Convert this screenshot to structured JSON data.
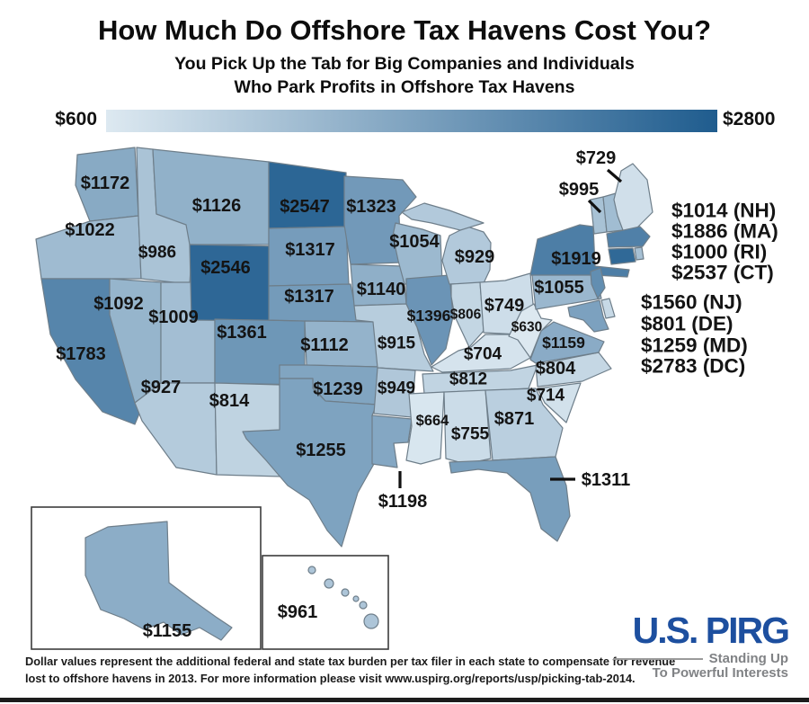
{
  "header": {
    "title": "How Much Do Offshore Tax Havens Cost You?",
    "subtitle_line1": "You Pick Up the Tab for Big Companies and Individuals",
    "subtitle_line2": "Who Park Profits in Offshore Tax Havens"
  },
  "legend": {
    "min_label": "$600",
    "max_label": "$2800",
    "min_value": 600,
    "max_value": 2800,
    "light_color": "#dde9f1",
    "dark_color": "#1f5c8e"
  },
  "chart_data": {
    "type": "choropleth",
    "title": "How Much Do Offshore Tax Havens Cost You?",
    "unit": "additional federal and state tax burden per tax filer, USD, 2013",
    "color_scale": {
      "min": 600,
      "max": 2800,
      "min_color": "#dde9f1",
      "max_color": "#1f5c8e"
    },
    "states": [
      {
        "code": "WA",
        "value": 1172
      },
      {
        "code": "OR",
        "value": 1022
      },
      {
        "code": "CA",
        "value": 1783
      },
      {
        "code": "NV",
        "value": 1092
      },
      {
        "code": "ID",
        "value": 986
      },
      {
        "code": "UT",
        "value": 1009
      },
      {
        "code": "AZ",
        "value": 927
      },
      {
        "code": "MT",
        "value": 1126
      },
      {
        "code": "WY",
        "value": 2546
      },
      {
        "code": "CO",
        "value": 1361
      },
      {
        "code": "NM",
        "value": 814
      },
      {
        "code": "ND",
        "value": 2547
      },
      {
        "code": "SD",
        "value": 1317
      },
      {
        "code": "NE",
        "value": 1317
      },
      {
        "code": "KS",
        "value": 1112
      },
      {
        "code": "OK",
        "value": 1239
      },
      {
        "code": "TX",
        "value": 1255
      },
      {
        "code": "MN",
        "value": 1323
      },
      {
        "code": "IA",
        "value": 1140
      },
      {
        "code": "MO",
        "value": 915
      },
      {
        "code": "AR",
        "value": 949
      },
      {
        "code": "LA",
        "value": 1198
      },
      {
        "code": "WI",
        "value": 1054
      },
      {
        "code": "IL",
        "value": 1396
      },
      {
        "code": "MI",
        "value": 929
      },
      {
        "code": "IN",
        "value": 806
      },
      {
        "code": "OH",
        "value": 749
      },
      {
        "code": "KY",
        "value": 704
      },
      {
        "code": "TN",
        "value": 812
      },
      {
        "code": "MS",
        "value": 664
      },
      {
        "code": "AL",
        "value": 755
      },
      {
        "code": "GA",
        "value": 871
      },
      {
        "code": "FL",
        "value": 1311
      },
      {
        "code": "SC",
        "value": 714
      },
      {
        "code": "NC",
        "value": 804
      },
      {
        "code": "VA",
        "value": 1159
      },
      {
        "code": "WV",
        "value": 630
      },
      {
        "code": "PA",
        "value": 1055
      },
      {
        "code": "NY",
        "value": 1919
      },
      {
        "code": "NJ",
        "value": 1560
      },
      {
        "code": "DE",
        "value": 801
      },
      {
        "code": "MD",
        "value": 1259
      },
      {
        "code": "DC",
        "value": 2783
      },
      {
        "code": "VT",
        "value": 995
      },
      {
        "code": "NH",
        "value": 1014
      },
      {
        "code": "ME",
        "value": 729
      },
      {
        "code": "MA",
        "value": 1886
      },
      {
        "code": "RI",
        "value": 1000
      },
      {
        "code": "CT",
        "value": 2537
      },
      {
        "code": "AK",
        "value": 1155
      },
      {
        "code": "HI",
        "value": 961
      }
    ],
    "side_list_northeast": [
      "NH",
      "MA",
      "RI",
      "CT"
    ],
    "side_list_midatlantic": [
      "NJ",
      "DE",
      "MD",
      "DC"
    ]
  },
  "footnote": {
    "line1": "Dollar values represent the additional federal and state tax burden per tax filer in each state to compensate for revenue",
    "line2": "lost to offshore havens in 2013. For more information please visit www.uspirg.org/reports/usp/picking-tab-2014."
  },
  "logo": {
    "name": "U.S. PIRG",
    "tagline_line1": "Standing Up",
    "tagline_line2": "To Powerful Interests",
    "brand_color": "#1d4f9f",
    "tagline_color": "#808285"
  }
}
